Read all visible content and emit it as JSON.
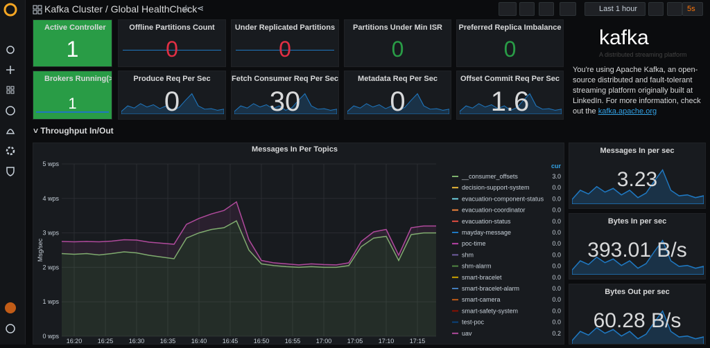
{
  "header": {
    "title": "Kafka Cluster / Global HealthCheck",
    "time_range": "Last 1 hour",
    "refresh": "5s"
  },
  "stats": [
    [
      {
        "title": "Active Controller",
        "value": 1,
        "color": "#ffffff",
        "bg": "#299c46"
      },
      {
        "title": "Offline Partitions Count",
        "value": 0,
        "color": "#e02f44"
      },
      {
        "title": "Under Replicated Partitions",
        "value": 0,
        "color": "#e02f44"
      },
      {
        "title": "Partitions Under Min ISR",
        "value": 0,
        "color": "#299c46"
      },
      {
        "title": "Preferred Replica Imbalance",
        "value": 0,
        "color": "#299c46"
      }
    ],
    [
      {
        "title": "Brokers Running(>=",
        "value": 1,
        "color": "#ffffff",
        "bg": "#299c46"
      },
      {
        "title": "Produce Req Per Sec",
        "value": 0,
        "color": "#d8d9da"
      },
      {
        "title": "Fetch Consumer Req Per Sec",
        "value": 30,
        "color": "#d8d9da"
      },
      {
        "title": "Metadata Req Per Sec",
        "value": 0,
        "color": "#d8d9da"
      },
      {
        "title": "Offset Commit Req Per Sec",
        "value": 1.6,
        "color": "#d8d9da"
      }
    ]
  ],
  "info": {
    "logo": "kafka",
    "tagline": "A distributed streaming platform",
    "text": "You're using Apache Kafka, an open-source distributed and fault-tolerant streaming platform originally built at LinkedIn. For more information, check out the",
    "link": "kafka.apache.org"
  },
  "row_title": "Throughput In/Out",
  "graph": {
    "title": "Messages In Per Topics",
    "y_label": "Msg/sec",
    "ylim": [
      0,
      5
    ],
    "yticks": [
      {
        "value": 0,
        "label": "0 wps"
      },
      {
        "value": 1,
        "label": "1 wps"
      },
      {
        "value": 2,
        "label": "2 wps"
      },
      {
        "value": 3,
        "label": "3 wps"
      },
      {
        "value": 4,
        "label": "4 wps"
      },
      {
        "value": 5,
        "label": "5 wps"
      }
    ],
    "xlim": [
      "16:18",
      "17:18"
    ],
    "xticks": [
      "16:20",
      "16:25",
      "16:30",
      "16:35",
      "16:40",
      "16:45",
      "16:50",
      "16:55",
      "17:00",
      "17:05",
      "17:10",
      "17:15"
    ],
    "x": [
      "16:18",
      "16:20",
      "16:22",
      "16:24",
      "16:26",
      "16:28",
      "16:30",
      "16:32",
      "16:34",
      "16:36",
      "16:38",
      "16:40",
      "16:42",
      "16:44",
      "16:46",
      "16:48",
      "16:50",
      "16:52",
      "16:54",
      "16:56",
      "16:58",
      "17:00",
      "17:02",
      "17:04",
      "17:06",
      "17:08",
      "17:10",
      "17:12",
      "17:14",
      "17:16",
      "17:18"
    ],
    "legend_header": "cur",
    "stacked": true,
    "series": [
      {
        "name": "__consumer_offsets",
        "color": "#7eb26d",
        "cur": "3.0",
        "values": [
          2.4,
          2.38,
          2.4,
          2.36,
          2.4,
          2.45,
          2.42,
          2.35,
          2.3,
          2.25,
          2.85,
          3.0,
          3.1,
          3.15,
          3.35,
          2.5,
          2.1,
          2.05,
          2.02,
          2.0,
          2.02,
          2.0,
          2.0,
          2.05,
          2.6,
          2.85,
          2.9,
          2.2,
          2.95,
          3.0,
          3.0
        ]
      },
      {
        "name": "decision-support-system",
        "color": "#eab839",
        "cur": "0.0"
      },
      {
        "name": "evacuation-component-status",
        "color": "#6ed0e0",
        "cur": "0.0"
      },
      {
        "name": "evacuation-coordinator",
        "color": "#ef843c",
        "cur": "0.0"
      },
      {
        "name": "evacuation-status",
        "color": "#e24d42",
        "cur": "0.0"
      },
      {
        "name": "mayday-message",
        "color": "#1f78c1",
        "cur": "0.0"
      },
      {
        "name": "poc-time",
        "color": "#ba43a9",
        "cur": "0.0"
      },
      {
        "name": "shm",
        "color": "#705da0",
        "cur": "0.0"
      },
      {
        "name": "shm-alarm",
        "color": "#508642",
        "cur": "0.0"
      },
      {
        "name": "smart-bracelet",
        "color": "#cca300",
        "cur": "0.0"
      },
      {
        "name": "smart-bracelet-alarm",
        "color": "#447ebc",
        "cur": "0.0"
      },
      {
        "name": "smart-camera",
        "color": "#c15c17",
        "cur": "0.0"
      },
      {
        "name": "smart-safety-system",
        "color": "#890f02",
        "cur": "0.0"
      },
      {
        "name": "test-poc",
        "color": "#0a437c",
        "cur": "0.0"
      },
      {
        "name": "uav",
        "color": "#b04a9c",
        "cur": "0.2",
        "values": [
          0.35,
          0.36,
          0.35,
          0.38,
          0.36,
          0.35,
          0.37,
          0.38,
          0.4,
          0.42,
          0.4,
          0.42,
          0.45,
          0.5,
          0.55,
          0.3,
          0.1,
          0.08,
          0.08,
          0.07,
          0.08,
          0.08,
          0.07,
          0.08,
          0.15,
          0.18,
          0.2,
          0.15,
          0.2,
          0.2,
          0.2
        ]
      }
    ]
  },
  "side_stats": [
    {
      "title": "Messages In per sec",
      "value": "3.23"
    },
    {
      "title": "Bytes In per sec",
      "value": "393.01 B/s"
    },
    {
      "title": "Bytes Out per sec",
      "value": "60.28 B/s"
    }
  ]
}
